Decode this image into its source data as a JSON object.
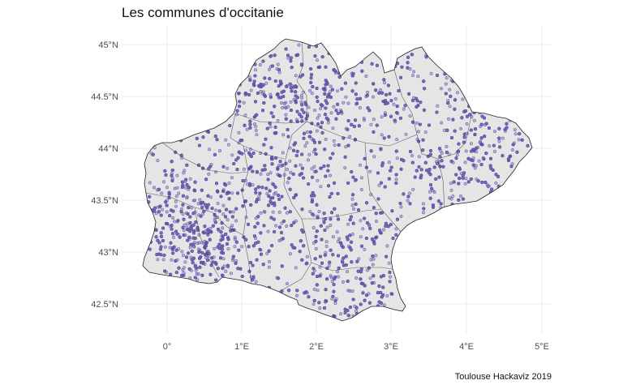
{
  "title": "Les communes d'occitanie",
  "caption": "Toulouse Hackaviz 2019",
  "y_ticks": [
    "45°N",
    "44.5°N",
    "44°N",
    "43.5°N",
    "43°N",
    "42.5°N"
  ],
  "x_ticks": [
    "0°",
    "1°E",
    "2°E",
    "3°E",
    "4°E",
    "5°E"
  ],
  "colors": {
    "region_fill": "#e6e5e6",
    "border": "#333333",
    "points": "#5e55a8",
    "grid": "#ebebeb"
  }
}
